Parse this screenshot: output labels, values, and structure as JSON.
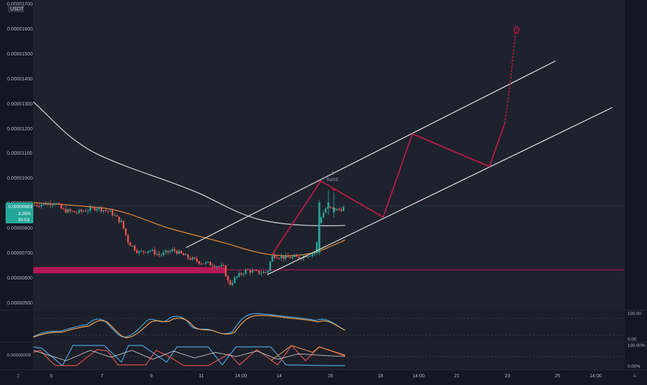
{
  "header": {
    "currency_label": "USDT"
  },
  "price_axis": {
    "labels": [
      "0.00000500",
      "0.00000600",
      "0.00000700",
      "0.00000800",
      "0.00000900",
      "0.00001000",
      "0.00001100",
      "0.00001200",
      "0.00001300",
      "0.00001400",
      "0.00001500",
      "0.00001600",
      "0.00001700"
    ]
  },
  "price_badge": {
    "price": "0.00000883",
    "change": "3.26%",
    "countdown": "30:53"
  },
  "time_axis": {
    "labels": [
      "5",
      "7",
      "9",
      "11",
      "14:00",
      "14",
      "16",
      "18",
      "14:00",
      "21",
      "23",
      "25",
      "14:00"
    ],
    "left_glyph": "Z",
    "right_glyph": "A"
  },
  "annotations": {
    "raise_label": "RaISE",
    "raise_top": "2"
  },
  "oscillator1": {
    "top_label": "100.00",
    "bottom_label": "0.00"
  },
  "oscillator2": {
    "top_label": "100.00%",
    "bottom_label": "0.00%",
    "left_label": "0.00000000"
  },
  "colors": {
    "background": "#131722",
    "plot_background": "#1e222d",
    "up_candle": "#26a69a",
    "down_candle": "#ef5350",
    "support_zone": "#c2185b",
    "projection": "#b71c45",
    "channel": "#e8e8e8",
    "ma_slow": "#cfcfcf",
    "ma_fast": "#e08a3c",
    "osc_blue": "#4aa3df",
    "osc_orange": "#f0a050",
    "osc_red": "#e05050"
  },
  "chart_data": {
    "type": "candlestick",
    "y_scale": "price",
    "ylim": [
      4.8e-06,
      1.73e-05
    ],
    "x_ticks": [
      "5",
      "7",
      "9",
      "11",
      "14:00",
      "14",
      "16",
      "18",
      "14:00",
      "21",
      "23",
      "25",
      "14:00"
    ],
    "ohlc_approx": [
      {
        "segment": "early",
        "open": 9.1e-06,
        "high": 9.2e-06,
        "low": 8.6e-06,
        "close": 8.8e-06
      },
      {
        "segment": "drop",
        "open": 8.5e-06,
        "high": 8.6e-06,
        "low": 6.3e-06,
        "close": 6.7e-06
      },
      {
        "segment": "range",
        "open": 6.8e-06,
        "high": 7.3e-06,
        "low": 6.3e-06,
        "close": 6.6e-06
      },
      {
        "segment": "low",
        "open": 6.5e-06,
        "high": 6.6e-06,
        "low": 5.5e-06,
        "close": 6e-06
      },
      {
        "segment": "breakout",
        "open": 6.9e-06,
        "high": 9.9e-06,
        "low": 6.8e-06,
        "close": 9e-06
      },
      {
        "segment": "last",
        "open": 8.8e-06,
        "high": 9.3e-06,
        "low": 8.4e-06,
        "close": 8.8e-06
      }
    ],
    "support_zone_price": [
      6.2e-06,
      6.4e-06
    ],
    "horizontal_line_price": 6.3e-06,
    "current_price": 8.83e-06,
    "change_percent": 3.26,
    "projection_path_prices": [
      7e-06,
      9.9e-06,
      8.5e-06,
      1.18e-05,
      1.05e-05,
      1.22e-05,
      1.62e-05
    ]
  }
}
